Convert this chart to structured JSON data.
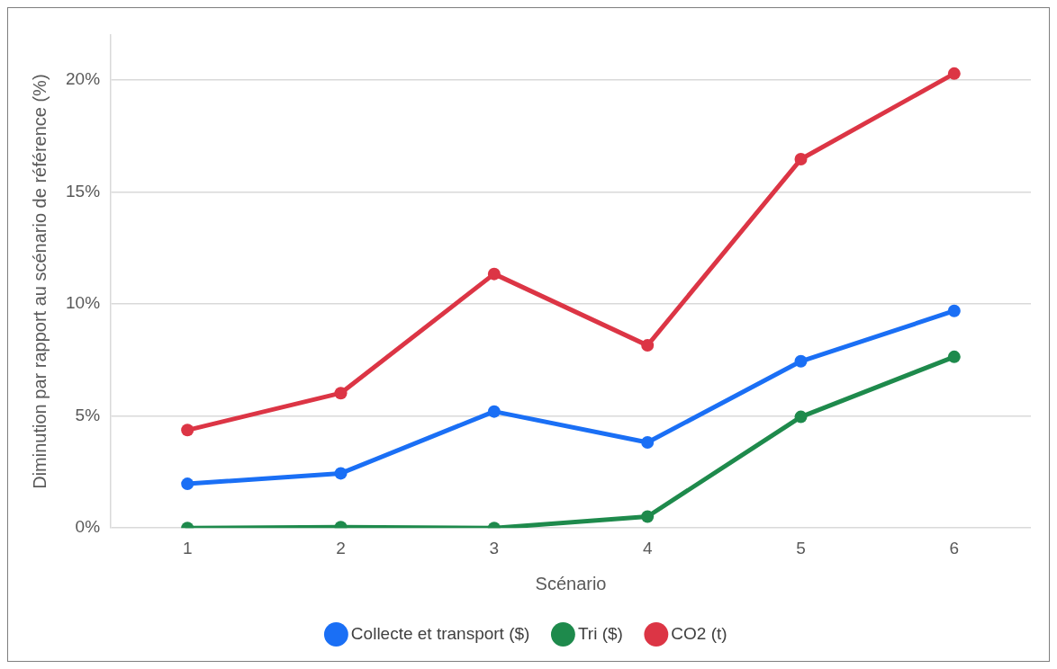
{
  "chart_data": {
    "type": "line",
    "xlabel": "Scénario",
    "ylabel": "Diminution par rapport au scénario de référence (%)",
    "categories": [
      "1",
      "2",
      "3",
      "4",
      "5",
      "6"
    ],
    "series": [
      {
        "name": "Collecte et transport ($)",
        "color": "#1a6ff5",
        "values": [
          1.97,
          2.44,
          5.2,
          3.82,
          7.44,
          9.69
        ]
      },
      {
        "name": "Tri ($)",
        "color": "#1e8a4c",
        "values": [
          0,
          0.04,
          0,
          0.51,
          4.96,
          7.64
        ]
      },
      {
        "name": "CO2 (t)",
        "color": "#dc3545",
        "values": [
          4.37,
          6.02,
          11.34,
          8.15,
          16.46,
          20.28
        ]
      }
    ],
    "ylim": [
      0,
      22
    ],
    "yticks": [
      {
        "value": 0,
        "label": "0%"
      },
      {
        "value": 5,
        "label": "5%"
      },
      {
        "value": 10,
        "label": "10%"
      },
      {
        "value": 15,
        "label": "15%"
      },
      {
        "value": 20,
        "label": "20%"
      }
    ],
    "grid": "y",
    "legend": "bottom",
    "marker": "circle",
    "line_style": "solid"
  }
}
